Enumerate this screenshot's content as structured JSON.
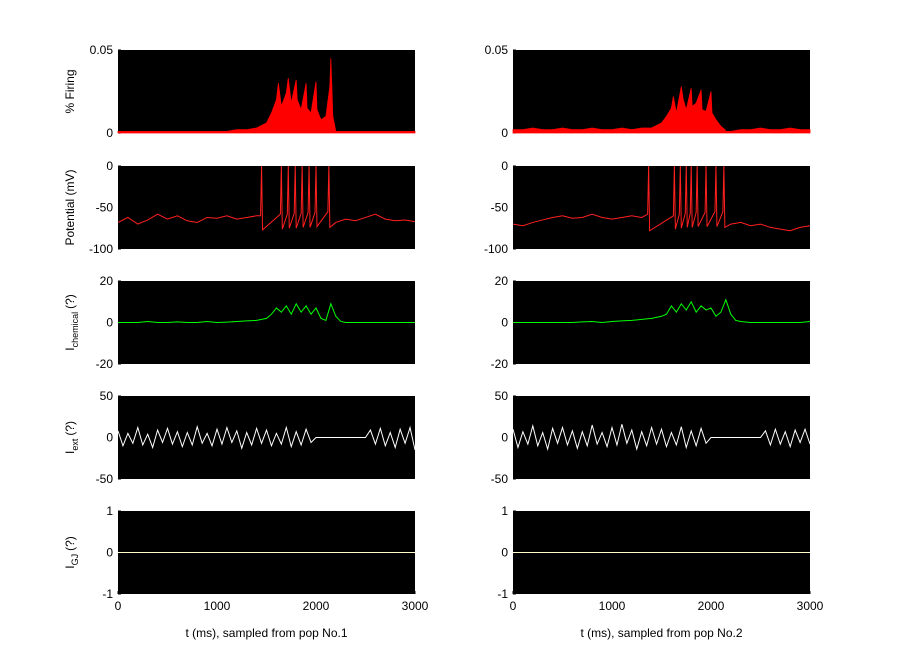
{
  "chart_data": [
    {
      "type": "area",
      "ylabel": "% Firing",
      "color": "#ff0000",
      "xlim": [
        0,
        3000
      ],
      "ylim": [
        0,
        0.05
      ],
      "yticks": [
        0,
        0.05
      ],
      "x": [
        0,
        100,
        200,
        300,
        400,
        500,
        600,
        700,
        800,
        900,
        1000,
        1100,
        1200,
        1300,
        1400,
        1500,
        1550,
        1600,
        1620,
        1650,
        1700,
        1720,
        1750,
        1800,
        1810,
        1850,
        1900,
        1910,
        1950,
        2000,
        2010,
        2050,
        2100,
        2140,
        2150,
        2170,
        2200,
        2300,
        2400,
        2500,
        2600,
        2700,
        2800,
        2900,
        3000
      ],
      "values": [
        0.001,
        0.001,
        0.001,
        0.001,
        0.001,
        0.001,
        0.001,
        0.001,
        0.001,
        0.001,
        0.001,
        0.001,
        0.002,
        0.002,
        0.003,
        0.006,
        0.012,
        0.02,
        0.03,
        0.016,
        0.024,
        0.033,
        0.018,
        0.032,
        0.02,
        0.014,
        0.03,
        0.015,
        0.012,
        0.031,
        0.014,
        0.008,
        0.01,
        0.028,
        0.045,
        0.01,
        0.001,
        0.001,
        0.001,
        0.001,
        0.001,
        0.001,
        0.001,
        0.001,
        0.001
      ]
    },
    {
      "type": "area",
      "color": "#ff0000",
      "xlim": [
        0,
        3000
      ],
      "ylim": [
        0,
        0.05
      ],
      "yticks": [
        0,
        0.05
      ],
      "x": [
        0,
        100,
        200,
        300,
        400,
        500,
        600,
        700,
        800,
        900,
        1000,
        1100,
        1200,
        1300,
        1400,
        1500,
        1550,
        1600,
        1620,
        1650,
        1700,
        1720,
        1750,
        1800,
        1810,
        1850,
        1900,
        1910,
        1950,
        2000,
        2010,
        2050,
        2100,
        2140,
        2150,
        2170,
        2200,
        2300,
        2400,
        2500,
        2600,
        2700,
        2800,
        2900,
        3000
      ],
      "values": [
        0.002,
        0.002,
        0.003,
        0.002,
        0.002,
        0.003,
        0.002,
        0.002,
        0.003,
        0.002,
        0.002,
        0.003,
        0.002,
        0.003,
        0.003,
        0.006,
        0.01,
        0.015,
        0.022,
        0.012,
        0.028,
        0.02,
        0.014,
        0.027,
        0.016,
        0.018,
        0.026,
        0.014,
        0.013,
        0.025,
        0.012,
        0.008,
        0.004,
        0.002,
        0.001,
        0.001,
        0.001,
        0.002,
        0.002,
        0.003,
        0.002,
        0.002,
        0.003,
        0.002,
        0.002
      ]
    },
    {
      "type": "line",
      "ylabel": "Potential (mV)",
      "color": "#ff2020",
      "xlim": [
        0,
        3000
      ],
      "ylim": [
        -100,
        0
      ],
      "yticks": [
        -100,
        -50,
        0
      ],
      "x": [
        0,
        100,
        200,
        300,
        400,
        500,
        600,
        700,
        800,
        900,
        1000,
        1100,
        1200,
        1300,
        1400,
        1440,
        1450,
        1460,
        1640,
        1650,
        1660,
        1710,
        1720,
        1730,
        1780,
        1790,
        1800,
        1850,
        1860,
        1870,
        1920,
        1930,
        1940,
        1990,
        2000,
        2010,
        2120,
        2130,
        2140,
        2200,
        2300,
        2400,
        2500,
        2600,
        2700,
        2800,
        2900,
        3000
      ],
      "values": [
        -68,
        -62,
        -70,
        -65,
        -58,
        -64,
        -60,
        -66,
        -68,
        -62,
        -63,
        -60,
        -64,
        -62,
        -60,
        -60,
        0,
        -77,
        -58,
        0,
        -76,
        -58,
        0,
        -75,
        -57,
        0,
        -75,
        -57,
        0,
        -74,
        -56,
        0,
        -74,
        -56,
        0,
        -73,
        -55,
        0,
        -74,
        -68,
        -64,
        -66,
        -62,
        -58,
        -64,
        -66,
        -65,
        -67
      ]
    },
    {
      "type": "line",
      "color": "#ff2020",
      "xlim": [
        0,
        3000
      ],
      "ylim": [
        -100,
        0
      ],
      "yticks": [
        -100,
        -50,
        0
      ],
      "x": [
        0,
        100,
        200,
        300,
        400,
        500,
        600,
        700,
        800,
        900,
        1000,
        1100,
        1200,
        1300,
        1360,
        1370,
        1380,
        1620,
        1630,
        1640,
        1680,
        1690,
        1700,
        1740,
        1750,
        1760,
        1790,
        1800,
        1810,
        1850,
        1860,
        1870,
        1940,
        1950,
        1960,
        2040,
        2050,
        2060,
        2120,
        2130,
        2140,
        2200,
        2300,
        2400,
        2500,
        2600,
        2700,
        2800,
        2900,
        3000
      ],
      "values": [
        -70,
        -72,
        -68,
        -65,
        -62,
        -60,
        -63,
        -62,
        -58,
        -62,
        -64,
        -62,
        -60,
        -62,
        -58,
        0,
        -78,
        -60,
        0,
        -76,
        -58,
        0,
        -75,
        -57,
        0,
        -74,
        -57,
        0,
        -74,
        -56,
        0,
        -73,
        -56,
        0,
        -73,
        -55,
        0,
        -73,
        -55,
        0,
        -74,
        -70,
        -68,
        -72,
        -70,
        -74,
        -76,
        -78,
        -74,
        -72
      ]
    },
    {
      "type": "line",
      "ylabel": "I",
      "ylabel_sub": "chemical",
      "ylabel_unit": "(?)",
      "color": "#00ff00",
      "xlim": [
        0,
        3000
      ],
      "ylim": [
        -20,
        20
      ],
      "yticks": [
        -20,
        0,
        20
      ],
      "x": [
        0,
        100,
        200,
        300,
        400,
        500,
        600,
        700,
        800,
        900,
        1000,
        1100,
        1200,
        1300,
        1400,
        1500,
        1550,
        1600,
        1650,
        1700,
        1750,
        1800,
        1850,
        1900,
        1950,
        2000,
        2050,
        2100,
        2150,
        2200,
        2250,
        2300,
        2400,
        2500,
        2600,
        2700,
        2800,
        2900,
        3000
      ],
      "values": [
        0,
        0,
        0,
        0.5,
        0,
        0,
        0.3,
        0,
        0,
        0.5,
        0,
        0.2,
        0.5,
        0.8,
        1,
        2,
        4,
        7,
        5,
        8,
        4,
        9,
        5,
        8,
        4,
        7,
        2,
        1,
        9,
        3,
        0.5,
        0,
        0,
        0,
        0,
        0,
        0,
        0,
        0
      ]
    },
    {
      "type": "line",
      "color": "#00ff00",
      "xlim": [
        0,
        3000
      ],
      "ylim": [
        -20,
        20
      ],
      "yticks": [
        -20,
        0,
        20
      ],
      "x": [
        0,
        100,
        200,
        300,
        400,
        500,
        600,
        700,
        800,
        900,
        1000,
        1100,
        1200,
        1300,
        1400,
        1500,
        1550,
        1600,
        1650,
        1700,
        1750,
        1800,
        1850,
        1900,
        1950,
        2000,
        2050,
        2100,
        2150,
        2200,
        2250,
        2300,
        2400,
        2500,
        2600,
        2700,
        2800,
        2900,
        3000
      ],
      "values": [
        0,
        0,
        0,
        0,
        0,
        0,
        0,
        0.3,
        0.5,
        0,
        0.5,
        0.8,
        1,
        1.5,
        2,
        3,
        4,
        8,
        5,
        9,
        6,
        10,
        5,
        8,
        6,
        7,
        3,
        5,
        11,
        4,
        1,
        0.5,
        0,
        0,
        0,
        0,
        0,
        0,
        0.5
      ]
    },
    {
      "type": "line",
      "ylabel": "I",
      "ylabel_sub": "ext",
      "ylabel_unit": "(?)",
      "color": "#ffffff",
      "xlim": [
        0,
        3000
      ],
      "ylim": [
        -50,
        50
      ],
      "yticks": [
        -50,
        0,
        50
      ],
      "x": [
        0,
        50,
        100,
        150,
        200,
        250,
        300,
        350,
        400,
        450,
        500,
        550,
        600,
        650,
        700,
        750,
        800,
        850,
        900,
        950,
        1000,
        1050,
        1100,
        1150,
        1200,
        1250,
        1300,
        1350,
        1400,
        1450,
        1500,
        1550,
        1600,
        1650,
        1700,
        1750,
        1800,
        1850,
        1900,
        1950,
        2000,
        2500,
        2550,
        2600,
        2650,
        2700,
        2750,
        2800,
        2850,
        2900,
        2950,
        3000
      ],
      "values": [
        8,
        -10,
        5,
        -7,
        12,
        -9,
        4,
        -12,
        9,
        -6,
        11,
        -8,
        7,
        -11,
        6,
        -9,
        13,
        -7,
        5,
        -10,
        10,
        -8,
        12,
        -6,
        8,
        -13,
        6,
        -9,
        11,
        -7,
        9,
        -10,
        5,
        -8,
        12,
        -11,
        7,
        -9,
        10,
        -6,
        0,
        0,
        9,
        -8,
        11,
        -10,
        6,
        -12,
        10,
        -7,
        12,
        -15
      ]
    },
    {
      "type": "line",
      "color": "#ffffff",
      "xlim": [
        0,
        3000
      ],
      "ylim": [
        -50,
        50
      ],
      "yticks": [
        -50,
        0,
        50
      ],
      "x": [
        0,
        50,
        100,
        150,
        200,
        250,
        300,
        350,
        400,
        450,
        500,
        550,
        600,
        650,
        700,
        750,
        800,
        850,
        900,
        950,
        1000,
        1050,
        1100,
        1150,
        1200,
        1250,
        1300,
        1350,
        1400,
        1450,
        1500,
        1550,
        1600,
        1650,
        1700,
        1750,
        1800,
        1850,
        1900,
        1950,
        2000,
        2500,
        2550,
        2600,
        2650,
        2700,
        2750,
        2800,
        2850,
        2900,
        2950,
        3000
      ],
      "values": [
        10,
        -12,
        7,
        -8,
        14,
        -10,
        6,
        -14,
        11,
        -7,
        12,
        -9,
        8,
        -13,
        7,
        -10,
        15,
        -8,
        6,
        -11,
        12,
        -9,
        16,
        -7,
        9,
        -14,
        7,
        -10,
        12,
        -8,
        10,
        -11,
        6,
        -9,
        13,
        -12,
        8,
        -10,
        11,
        -7,
        0,
        0,
        8,
        -9,
        10,
        -8,
        7,
        -11,
        9,
        -6,
        10,
        -8
      ]
    },
    {
      "type": "line",
      "ylabel": "I",
      "ylabel_sub": "GJ",
      "ylabel_unit": "(?)",
      "color": "#ffffcc",
      "xlim": [
        0,
        3000
      ],
      "ylim": [
        -1,
        1
      ],
      "yticks": [
        -1,
        0,
        1
      ],
      "xticks": [
        0,
        1000,
        2000,
        3000
      ],
      "xlabel": "t (ms), sampled from pop No.1",
      "x": [
        0,
        3000
      ],
      "values": [
        0,
        0
      ]
    },
    {
      "type": "line",
      "color": "#ffffcc",
      "xlim": [
        0,
        3000
      ],
      "ylim": [
        -1,
        1
      ],
      "yticks": [
        -1,
        0,
        1
      ],
      "xticks": [
        0,
        1000,
        2000,
        3000
      ],
      "xlabel": "t (ms), sampled from pop No.2",
      "x": [
        0,
        3000
      ],
      "values": [
        0,
        0
      ]
    }
  ]
}
